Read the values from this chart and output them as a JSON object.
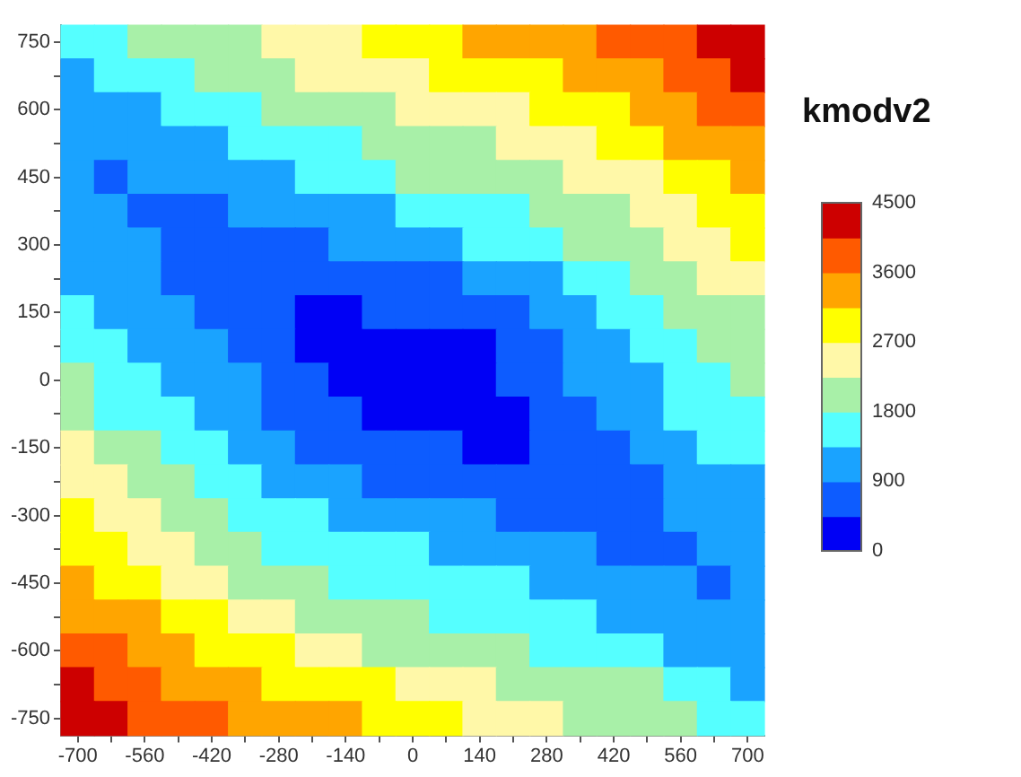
{
  "chart_data": {
    "type": "heatmap",
    "clabel": "kmodv2",
    "categories": [
      "-700",
      null,
      "-560",
      null,
      "-420",
      null,
      "-280",
      null,
      "-140",
      null,
      "0",
      null,
      "140",
      null,
      "280",
      null,
      "420",
      null,
      "560",
      null,
      "700"
    ],
    "y_categories": [
      "750",
      null,
      "600",
      null,
      "450",
      null,
      "300",
      null,
      "150",
      null,
      "0",
      null,
      "-150",
      null,
      "-300",
      null,
      "-450",
      null,
      "-600",
      null,
      "-750"
    ],
    "clim": [
      0,
      4500
    ],
    "cticks": [
      0,
      900,
      1800,
      2700,
      3600,
      4500
    ],
    "colors": [
      "#0000f5",
      "#0d5cff",
      "#1aa3ff",
      "#55ffff",
      "#a8f0a8",
      "#fff8a8",
      "#ffff00",
      "#ffa500",
      "#ff5a00",
      "#cd0000"
    ],
    "cells": [
      [
        1575,
        1575,
        2025,
        2025,
        2025,
        2025,
        2475,
        2475,
        2475,
        2925,
        2925,
        2925,
        3375,
        3375,
        3375,
        3375,
        3825,
        3825,
        3825,
        4275,
        4275
      ],
      [
        1125,
        1575,
        1575,
        1575,
        2025,
        2025,
        2025,
        2475,
        2475,
        2475,
        2475,
        2925,
        2925,
        2925,
        2925,
        3375,
        3375,
        3375,
        3825,
        3825,
        4275
      ],
      [
        1125,
        1125,
        1125,
        1575,
        1575,
        1575,
        2025,
        2025,
        2025,
        2025,
        2475,
        2475,
        2475,
        2475,
        2925,
        2925,
        2925,
        3375,
        3375,
        3825,
        3825
      ],
      [
        1125,
        1125,
        1125,
        1125,
        1125,
        1575,
        1575,
        1575,
        1575,
        2025,
        2025,
        2025,
        2025,
        2475,
        2475,
        2475,
        2925,
        2925,
        3375,
        3375,
        3375
      ],
      [
        1125,
        675,
        1125,
        1125,
        1125,
        1125,
        1125,
        1575,
        1575,
        1575,
        2025,
        2025,
        2025,
        2025,
        2025,
        2475,
        2475,
        2475,
        2925,
        2925,
        3375
      ],
      [
        1125,
        1125,
        675,
        675,
        675,
        1125,
        1125,
        1125,
        1125,
        1125,
        1575,
        1575,
        1575,
        1575,
        2025,
        2025,
        2025,
        2475,
        2475,
        2925,
        2925
      ],
      [
        1125,
        1125,
        1125,
        675,
        675,
        675,
        675,
        675,
        1125,
        1125,
        1125,
        1125,
        1575,
        1575,
        1575,
        2025,
        2025,
        2025,
        2475,
        2475,
        2925
      ],
      [
        1125,
        1125,
        1125,
        675,
        675,
        675,
        675,
        675,
        675,
        675,
        675,
        675,
        1125,
        1125,
        1125,
        1575,
        1575,
        2025,
        2025,
        2475,
        2475
      ],
      [
        1575,
        1125,
        1125,
        1125,
        675,
        675,
        675,
        225,
        225,
        675,
        675,
        675,
        675,
        675,
        1125,
        1125,
        1575,
        1575,
        2025,
        2025,
        2025
      ],
      [
        1575,
        1575,
        1125,
        1125,
        1125,
        675,
        675,
        225,
        225,
        225,
        225,
        225,
        225,
        675,
        675,
        1125,
        1125,
        1575,
        1575,
        2025,
        2025
      ],
      [
        2025,
        1575,
        1575,
        1125,
        1125,
        1125,
        675,
        675,
        225,
        225,
        225,
        225,
        225,
        675,
        675,
        1125,
        1125,
        1125,
        1575,
        1575,
        2025
      ],
      [
        2025,
        1575,
        1575,
        1575,
        1125,
        1125,
        675,
        675,
        675,
        225,
        225,
        225,
        225,
        225,
        675,
        675,
        1125,
        1125,
        1575,
        1575,
        1575
      ],
      [
        2475,
        2025,
        2025,
        1575,
        1575,
        1125,
        1125,
        675,
        675,
        675,
        675,
        675,
        225,
        225,
        675,
        675,
        675,
        1125,
        1125,
        1575,
        1575
      ],
      [
        2475,
        2475,
        2025,
        2025,
        1575,
        1575,
        1125,
        1125,
        1125,
        675,
        675,
        675,
        675,
        675,
        675,
        675,
        675,
        675,
        1125,
        1125,
        1125
      ],
      [
        2925,
        2475,
        2475,
        2025,
        2025,
        1575,
        1575,
        1575,
        1125,
        1125,
        1125,
        1125,
        1125,
        675,
        675,
        675,
        675,
        675,
        1125,
        1125,
        1125
      ],
      [
        2925,
        2925,
        2475,
        2475,
        2025,
        2025,
        1575,
        1575,
        1575,
        1575,
        1575,
        1125,
        1125,
        1125,
        1125,
        1125,
        675,
        675,
        675,
        1125,
        1125
      ],
      [
        3375,
        2925,
        2925,
        2475,
        2475,
        2025,
        2025,
        2025,
        1575,
        1575,
        1575,
        1575,
        1575,
        1575,
        1125,
        1125,
        1125,
        1125,
        1125,
        675,
        1125
      ],
      [
        3375,
        3375,
        3375,
        2925,
        2925,
        2475,
        2475,
        2025,
        2025,
        2025,
        2025,
        1575,
        1575,
        1575,
        1575,
        1575,
        1125,
        1125,
        1125,
        1125,
        1125
      ],
      [
        3825,
        3825,
        3375,
        3375,
        2925,
        2925,
        2925,
        2475,
        2475,
        2025,
        2025,
        2025,
        2025,
        2025,
        1575,
        1575,
        1575,
        1575,
        1125,
        1125,
        1125
      ],
      [
        4275,
        3825,
        3825,
        3375,
        3375,
        3375,
        2925,
        2925,
        2925,
        2925,
        2475,
        2475,
        2475,
        2025,
        2025,
        2025,
        2025,
        2025,
        1575,
        1575,
        1125
      ],
      [
        4275,
        4275,
        3825,
        3825,
        3825,
        3375,
        3375,
        3375,
        3375,
        2925,
        2925,
        2925,
        2475,
        2475,
        2475,
        2025,
        2025,
        2025,
        2025,
        1575,
        1575
      ]
    ]
  }
}
